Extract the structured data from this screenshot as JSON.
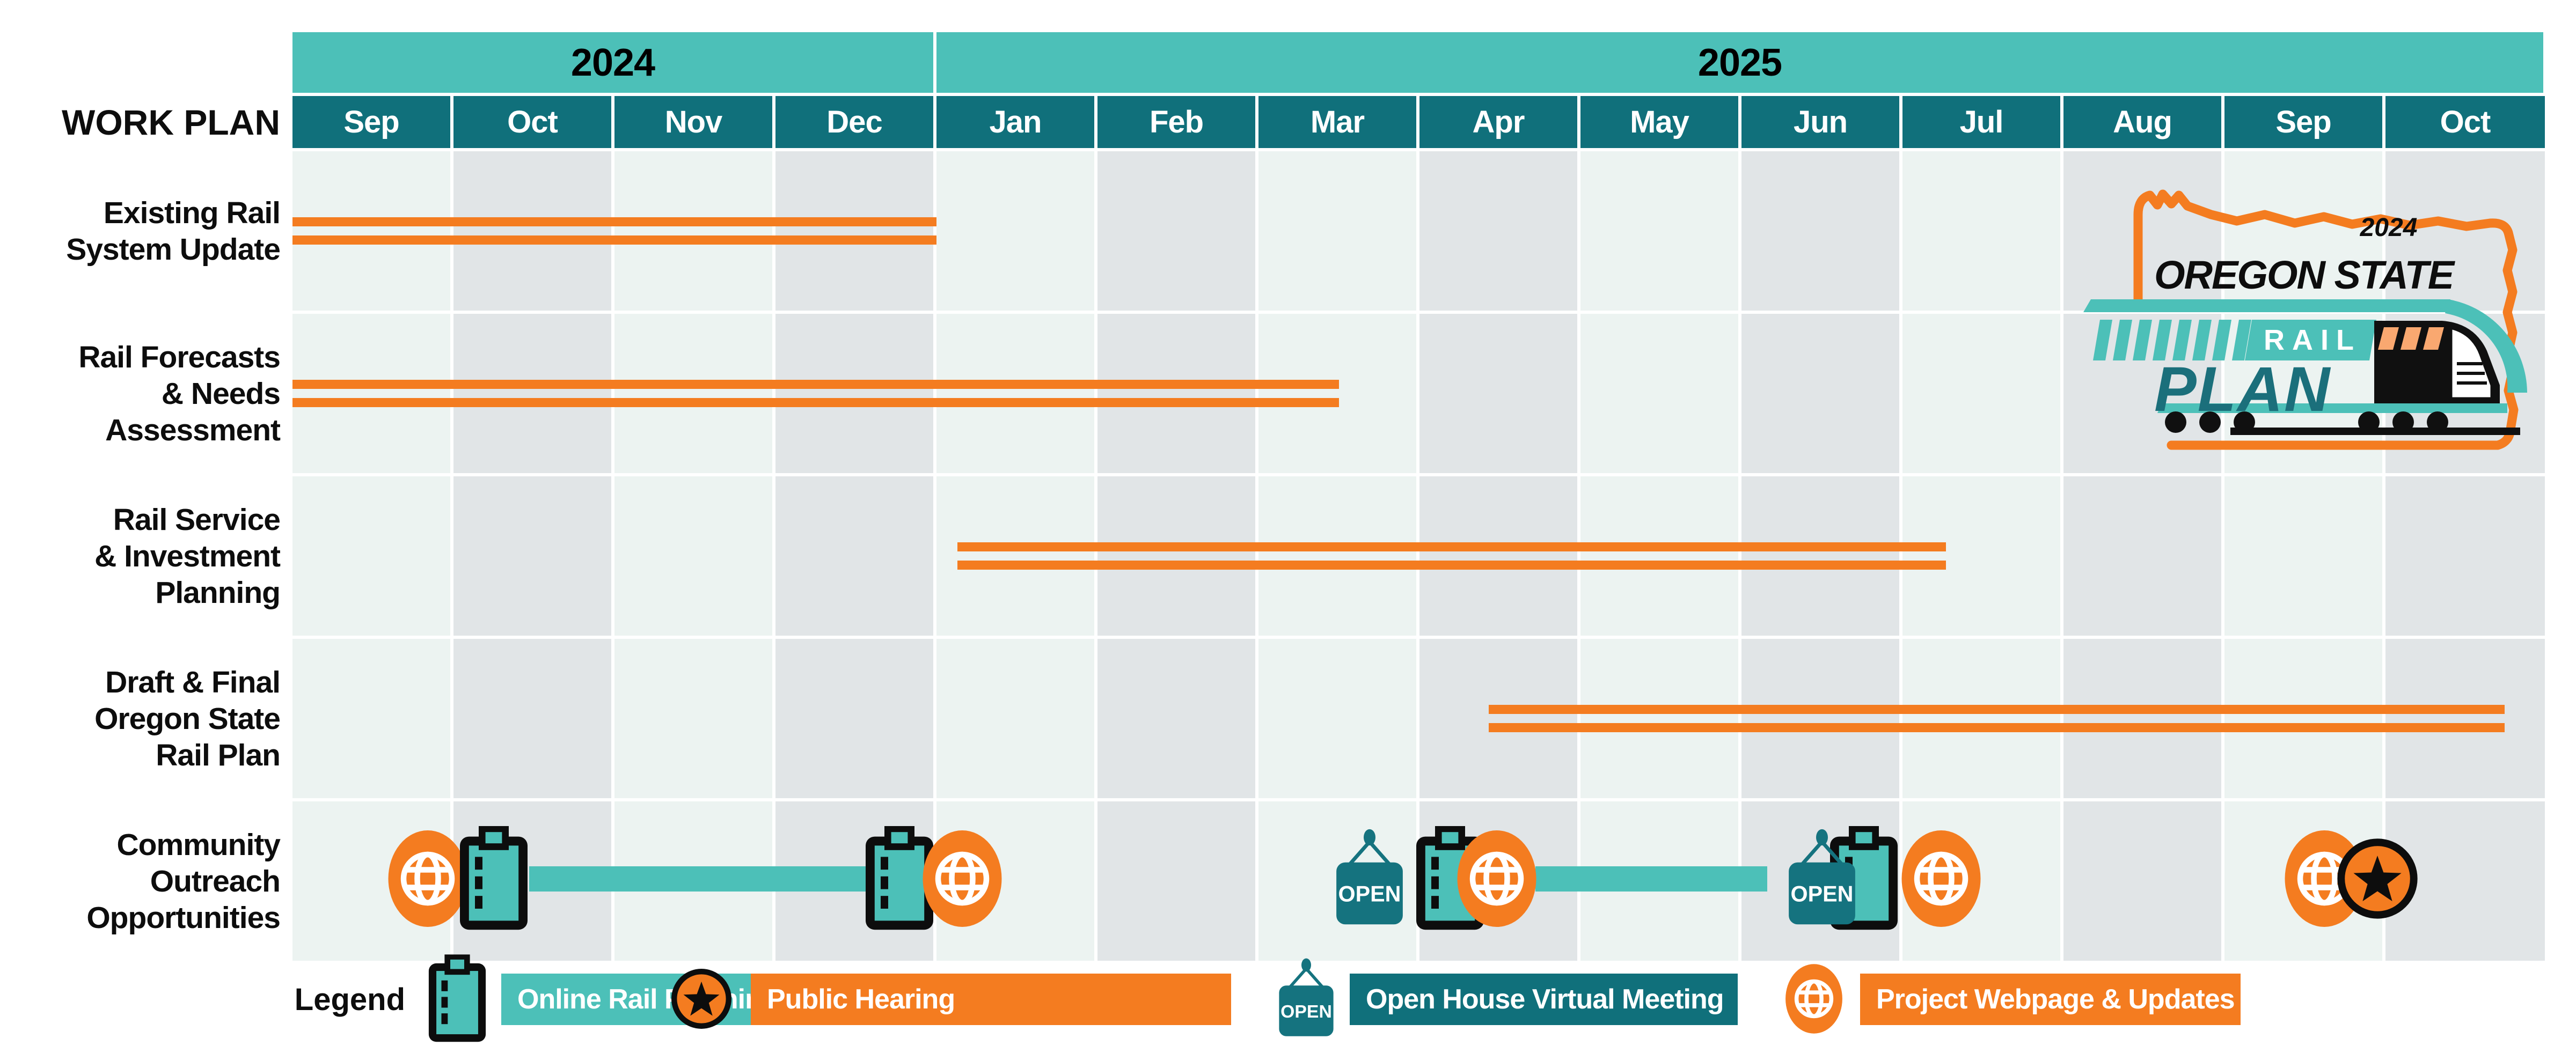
{
  "title": "WORK PLAN",
  "header": {
    "years": [
      {
        "label": "2024",
        "months": 4
      },
      {
        "label": "2025",
        "months": 10
      }
    ],
    "months": [
      "Sep",
      "Oct",
      "Nov",
      "Dec",
      "Jan",
      "Feb",
      "Mar",
      "Apr",
      "May",
      "Jun",
      "Jul",
      "Aug",
      "Sep",
      "Oct"
    ]
  },
  "rows": [
    {
      "label_lines": [
        "Existing Rail",
        "System Update"
      ]
    },
    {
      "label_lines": [
        "Rail Forecasts",
        "& Needs",
        "Assessment"
      ]
    },
    {
      "label_lines": [
        "Rail Service",
        "& Investment",
        "Planning"
      ]
    },
    {
      "label_lines": [
        "Draft & Final",
        "Oregon State",
        "Rail Plan"
      ]
    },
    {
      "label_lines": [
        "Community",
        "Outreach",
        "Opportunities"
      ]
    }
  ],
  "chart_data": {
    "type": "gantt",
    "title": "WORK PLAN",
    "timeline": [
      "Sep 2024",
      "Oct 2024",
      "Nov 2024",
      "Dec 2024",
      "Jan 2025",
      "Feb 2025",
      "Mar 2025",
      "Apr 2025",
      "May 2025",
      "Jun 2025",
      "Jul 2025",
      "Aug 2025",
      "Sep 2025",
      "Oct 2025"
    ],
    "tasks": [
      {
        "name": "Existing Rail System Update",
        "start": "Sep 2024",
        "end": "Dec 2024",
        "start_idx": 0,
        "end_idx": 4.0,
        "row": 0
      },
      {
        "name": "Rail Forecasts & Needs Assessment",
        "start": "Sep 2024",
        "end": "mid-Mar 2025",
        "start_idx": 0,
        "end_idx": 6.5,
        "row": 1
      },
      {
        "name": "Rail Service & Investment Planning",
        "start": "early Jan 2025",
        "end": "early Jul 2025",
        "start_idx": 4.13,
        "end_idx": 10.27,
        "row": 2
      },
      {
        "name": "Draft & Final Oregon State Rail Plan",
        "start": "mid-Apr 2025",
        "end": "late Oct 2025",
        "start_idx": 7.43,
        "end_idx": 13.74,
        "row": 3
      }
    ],
    "outreach_events": [
      {
        "type": "webpage",
        "month_idx": 0.84,
        "z": 1
      },
      {
        "type": "survey",
        "month_idx": 1.25,
        "z": 2
      },
      {
        "type": "survey-period",
        "from_idx": 1.47,
        "to_idx": 3.57
      },
      {
        "type": "survey",
        "month_idx": 3.77,
        "z": 2
      },
      {
        "type": "webpage",
        "month_idx": 4.16,
        "z": 3
      },
      {
        "type": "open-house",
        "month_idx": 6.69,
        "z": 3
      },
      {
        "type": "survey",
        "month_idx": 7.19,
        "z": 2
      },
      {
        "type": "webpage",
        "month_idx": 7.48,
        "z": 4
      },
      {
        "type": "survey-period",
        "from_idx": 7.72,
        "to_idx": 9.16
      },
      {
        "type": "open-house",
        "month_idx": 9.5,
        "z": 3
      },
      {
        "type": "survey",
        "month_idx": 9.76,
        "z": 2
      },
      {
        "type": "webpage",
        "month_idx": 10.24,
        "z": 4
      },
      {
        "type": "webpage",
        "month_idx": 12.62,
        "z": 4
      },
      {
        "type": "public-hearing",
        "month_idx": 12.95,
        "z": 5
      }
    ],
    "legend_position": "bottom",
    "grid": "alternating-month-columns"
  },
  "icons": {
    "open_sign_text": "OPEN"
  },
  "legend": {
    "label": "Legend",
    "items": [
      {
        "icon": "survey",
        "text": "Online Rail Planning Surveys",
        "bg": "#4CC0B8"
      },
      {
        "icon": "public-hearing",
        "text": "Public Hearing",
        "bg": "#F47C20"
      },
      {
        "icon": "open-house",
        "text": "Open House Virtual Meeting",
        "bg": "#10707B"
      },
      {
        "icon": "webpage",
        "text": "Project Webpage & Updates",
        "bg": "#F47C20"
      }
    ]
  },
  "logo": {
    "year": "2024",
    "title": "OREGON STATE",
    "rail": "RAIL",
    "plan": "PLAN"
  },
  "colors": {
    "teal_light": "#4CC0B8",
    "teal_dark": "#10707B",
    "teal_sign": "#15737F",
    "plan_teal": "#1B6F7B",
    "orange": "#F47C20",
    "orange_light": "#F9A870",
    "column_mint": "#ECF3F1",
    "column_gray": "#E1E5E7",
    "black": "#0D0D0D"
  }
}
